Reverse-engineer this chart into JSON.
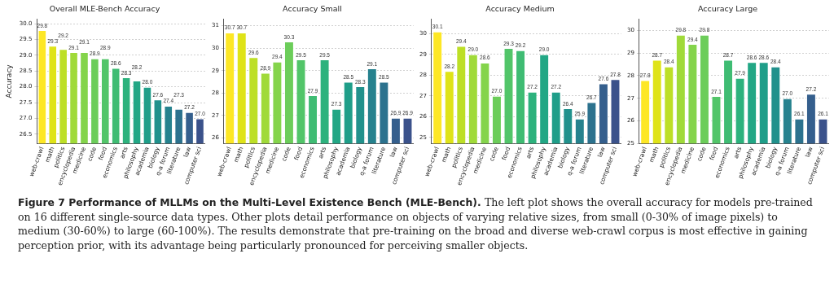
{
  "chart_data": [
    {
      "type": "bar",
      "title": "Overall MLE-Bench Accuracy",
      "ylabel": "Accuracy",
      "categories": [
        "web-crawl",
        "math",
        "politics",
        "encyclopedia",
        "medicine",
        "code",
        "food",
        "economics",
        "arts",
        "philosophy",
        "academia",
        "biology",
        "q-a forum",
        "literature",
        "law",
        "computer sci"
      ],
      "values": [
        29.8,
        29.3,
        29.2,
        29.1,
        29.1,
        28.9,
        28.9,
        28.6,
        28.3,
        28.2,
        28.0,
        27.6,
        27.4,
        27.3,
        27.2,
        27.0
      ],
      "value_labels": [
        "29.8",
        "29.3",
        "29.2",
        "29.1",
        "29.1",
        "28.9",
        "28.9",
        "28.6",
        "28.3",
        "28.2",
        "28.0",
        "27.6",
        "27.4",
        "27.3",
        "27.2",
        "27.0"
      ],
      "colors": [
        "#fde725",
        "#dfe318",
        "#bddf26",
        "#a0da39",
        "#84d44b",
        "#6ccd5a",
        "#52c569",
        "#3fbc73",
        "#2db27d",
        "#22a785",
        "#1f9e89",
        "#21918c",
        "#26828e",
        "#2c728e",
        "#355f8d",
        "#3b528b"
      ],
      "ylim": [
        26.2,
        30.15
      ],
      "yticks": [
        26.5,
        {
          "value": 27,
          "label": "27.0"
        },
        27.5,
        {
          "value": 28,
          "label": "28.0"
        },
        28.5,
        {
          "value": 29,
          "label": "29.0"
        },
        29.5,
        {
          "value": 30,
          "label": "30.0"
        }
      ],
      "grid": "y",
      "annotations": [
        "Figure 7   Performance of MLLMs on the Multi-Level Existence Bench (MLE-Bench).",
        "The left plot shows the overall accuracy for models pre-trained on 16 different single-source data types. Other plots detail performance on objects of varying relative sizes, from small (0-30% of image pixels) to medium (30-60%) to large (60-100%). The results demonstrate that pre-training on the broad and diverse web-crawl corpus is most effective in gaining perception prior, with its advantage being particularly pronounced for perceiving smaller objects."
      ]
    },
    {
      "type": "bar",
      "title": "Accuracy Small",
      "categories": [
        "web-crawl",
        "math",
        "politics",
        "encyclopedia",
        "medicine",
        "code",
        "food",
        "economics",
        "arts",
        "philosophy",
        "academia",
        "biology",
        "q-a forum",
        "literature",
        "law",
        "computer sci"
      ],
      "values": [
        30.7,
        30.7,
        29.6,
        28.9,
        29.4,
        30.3,
        29.5,
        27.9,
        29.5,
        27.3,
        28.5,
        28.3,
        29.1,
        28.5,
        26.9,
        26.9
      ],
      "value_labels": [
        "30.7",
        "30.7",
        "29.6",
        "28.9",
        "29.4",
        "30.3",
        "29.5",
        "27.9",
        "29.5",
        "27.3",
        "28.5",
        "28.3",
        "29.1",
        "28.5",
        "26.9",
        "26.9"
      ],
      "colors": [
        "#fde725",
        "#dfe318",
        "#bddf26",
        "#a0da39",
        "#84d44b",
        "#6ccd5a",
        "#52c569",
        "#3fbc73",
        "#2db27d",
        "#22a785",
        "#1f9e89",
        "#21918c",
        "#26828e",
        "#2c728e",
        "#355f8d",
        "#3b528b"
      ],
      "ylim": [
        25.75,
        31.3
      ],
      "yticks": [
        26,
        27,
        28,
        29,
        30,
        31
      ],
      "grid": "y"
    },
    {
      "type": "bar",
      "title": "Accuracy Medium",
      "categories": [
        "web-crawl",
        "math",
        "politics",
        "encyclopedia",
        "medicine",
        "code",
        "food",
        "economics",
        "arts",
        "philosophy",
        "academia",
        "biology",
        "q-a forum",
        "literature",
        "law",
        "computer sci"
      ],
      "values": [
        30.1,
        28.2,
        29.4,
        29.0,
        28.6,
        27.0,
        29.3,
        29.2,
        27.2,
        29.0,
        27.2,
        26.4,
        25.9,
        26.7,
        27.6,
        27.8
      ],
      "value_labels": [
        "30.1",
        "28.2",
        "29.4",
        "29.0",
        "28.6",
        "27.0",
        "29.3",
        "29.2",
        "27.2",
        "29.0",
        "27.2",
        "26.4",
        "25.9",
        "26.7",
        "27.6",
        "27.8"
      ],
      "colors": [
        "#fde725",
        "#dfe318",
        "#bddf26",
        "#a0da39",
        "#84d44b",
        "#6ccd5a",
        "#52c569",
        "#3fbc73",
        "#2db27d",
        "#22a785",
        "#1f9e89",
        "#21918c",
        "#26828e",
        "#2c728e",
        "#355f8d",
        "#3b528b"
      ],
      "ylim": [
        24.7,
        30.7
      ],
      "yticks": [
        25,
        26,
        27,
        28,
        29,
        30
      ],
      "grid": "y"
    },
    {
      "type": "bar",
      "title": "Accuracy Large",
      "categories": [
        "web-crawl",
        "math",
        "politics",
        "encyclopedia",
        "medicine",
        "code",
        "food",
        "economics",
        "arts",
        "philosophy",
        "academia",
        "biology",
        "q-a forum",
        "literature",
        "law",
        "computer sci"
      ],
      "values": [
        27.8,
        28.7,
        28.4,
        29.8,
        29.4,
        29.8,
        27.1,
        28.7,
        27.9,
        28.6,
        28.6,
        28.4,
        27.0,
        26.1,
        27.2,
        26.1
      ],
      "value_labels": [
        "27.8",
        "28.7",
        "28.4",
        "29.8",
        "29.4",
        "29.8",
        "27.1",
        "28.7",
        "27.9",
        "28.6",
        "28.6",
        "28.4",
        "27.0",
        "26.1",
        "27.2",
        "26.1"
      ],
      "colors": [
        "#fde725",
        "#dfe318",
        "#bddf26",
        "#a0da39",
        "#84d44b",
        "#6ccd5a",
        "#52c569",
        "#3fbc73",
        "#2db27d",
        "#22a785",
        "#1f9e89",
        "#21918c",
        "#26828e",
        "#2c728e",
        "#355f8d",
        "#3b528b"
      ],
      "ylim": [
        25,
        30.5
      ],
      "yticks": [
        25,
        26,
        27,
        28,
        29,
        30
      ],
      "grid": "y"
    }
  ]
}
